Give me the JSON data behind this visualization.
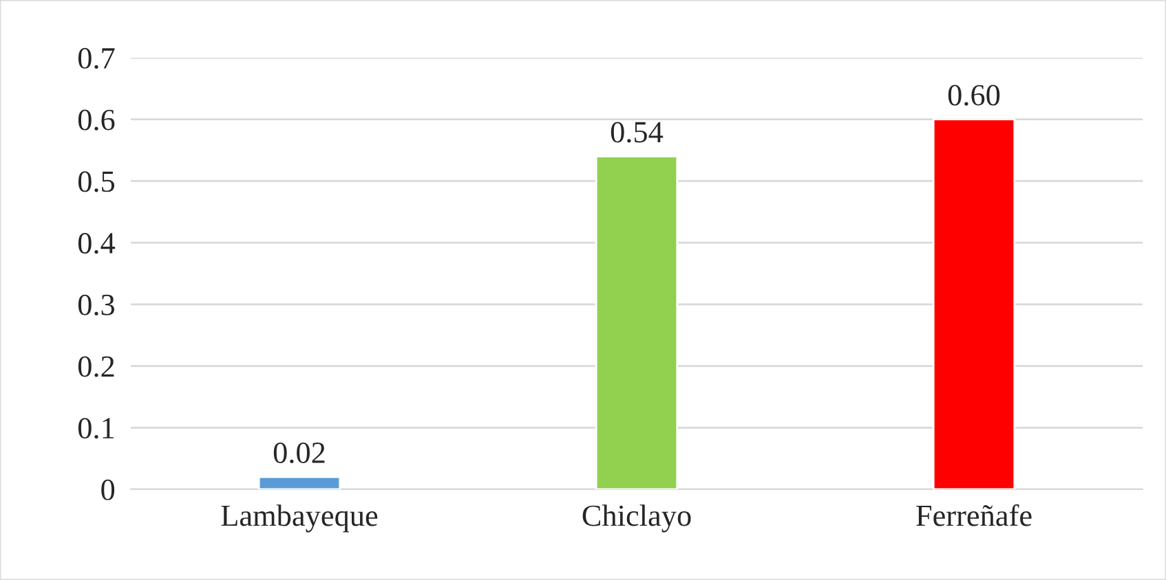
{
  "chart_data": {
    "type": "bar",
    "categories": [
      "Lambayeque",
      "Chiclayo",
      "Ferreñafe"
    ],
    "values": [
      0.02,
      0.54,
      0.6
    ],
    "colors": [
      "#5b9bd5",
      "#92d050",
      "#ff0000"
    ],
    "value_labels": [
      "0.02",
      "0.54",
      "0.60"
    ],
    "ylim": [
      0,
      0.7
    ],
    "yticks": [
      0,
      0.1,
      0.2,
      0.3,
      0.4,
      0.5,
      0.6,
      0.7
    ],
    "grid": "y"
  }
}
